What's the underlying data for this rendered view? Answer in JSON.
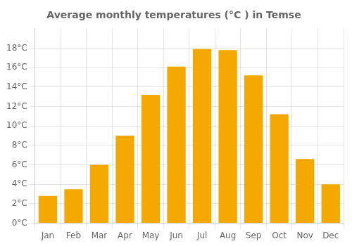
{
  "chart_data": {
    "type": "bar",
    "title": "Average monthly temperatures (°C ) in Temse",
    "categories": [
      "Jan",
      "Feb",
      "Mar",
      "Apr",
      "May",
      "Jun",
      "Jul",
      "Aug",
      "Sep",
      "Oct",
      "Nov",
      "Dec"
    ],
    "values": [
      2.8,
      3.5,
      6.0,
      9.0,
      13.2,
      16.1,
      17.9,
      17.8,
      15.2,
      11.2,
      6.6,
      4.0
    ],
    "color": "#F5A800",
    "ylim": [
      0,
      20
    ],
    "yticks": [
      {
        "value": 0,
        "label": "0°C"
      },
      {
        "value": 2,
        "label": "2°C"
      },
      {
        "value": 4,
        "label": "4°C"
      },
      {
        "value": 6,
        "label": "6°C"
      },
      {
        "value": 8,
        "label": "8°C"
      },
      {
        "value": 10,
        "label": "10°C"
      },
      {
        "value": 12,
        "label": "12°C"
      },
      {
        "value": 14,
        "label": "14°C"
      },
      {
        "value": 16,
        "label": "16°C"
      },
      {
        "value": 18,
        "label": "18°C"
      }
    ],
    "grid": true
  }
}
